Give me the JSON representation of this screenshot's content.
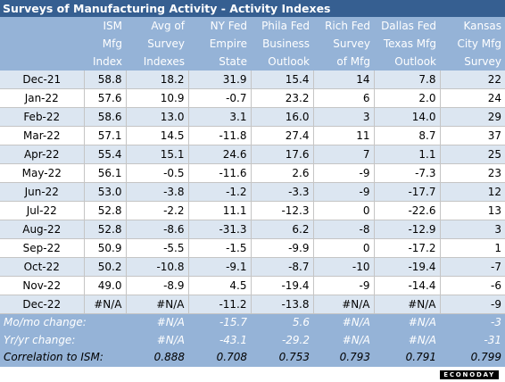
{
  "title": "Surveys of Manufacturing Activity - Activity Indexes",
  "brand": "ECONODAY",
  "chart_data": {
    "type": "table",
    "title": "Surveys of Manufacturing Activity - Activity Indexes",
    "columns": [
      {
        "key": "month",
        "header": [
          "",
          "",
          ""
        ]
      },
      {
        "key": "ism",
        "header": [
          "ISM",
          "Mfg",
          "Index"
        ]
      },
      {
        "key": "avg",
        "header": [
          "Avg of",
          "Survey",
          "Indexes"
        ]
      },
      {
        "key": "nyfed",
        "header": [
          "NY Fed",
          "Empire",
          "State"
        ]
      },
      {
        "key": "phila",
        "header": [
          "Phila Fed",
          "Business",
          "Outlook"
        ]
      },
      {
        "key": "rich",
        "header": [
          "Rich Fed",
          "Survey",
          "of Mfg"
        ]
      },
      {
        "key": "dallas",
        "header": [
          "Dallas Fed",
          "Texas Mfg",
          "Outlook"
        ]
      },
      {
        "key": "kc",
        "header": [
          "Kansas",
          "City Mfg",
          "Survey"
        ]
      }
    ],
    "rows": [
      [
        "Dec-21",
        "58.8",
        "18.2",
        "31.9",
        "15.4",
        "14",
        "7.8",
        "22"
      ],
      [
        "Jan-22",
        "57.6",
        "10.9",
        "-0.7",
        "23.2",
        "6",
        "2.0",
        "24"
      ],
      [
        "Feb-22",
        "58.6",
        "13.0",
        "3.1",
        "16.0",
        "3",
        "14.0",
        "29"
      ],
      [
        "Mar-22",
        "57.1",
        "14.5",
        "-11.8",
        "27.4",
        "11",
        "8.7",
        "37"
      ],
      [
        "Apr-22",
        "55.4",
        "15.1",
        "24.6",
        "17.6",
        "7",
        "1.1",
        "25"
      ],
      [
        "May-22",
        "56.1",
        "-0.5",
        "-11.6",
        "2.6",
        "-9",
        "-7.3",
        "23"
      ],
      [
        "Jun-22",
        "53.0",
        "-3.8",
        "-1.2",
        "-3.3",
        "-9",
        "-17.7",
        "12"
      ],
      [
        "Jul-22",
        "52.8",
        "-2.2",
        "11.1",
        "-12.3",
        "0",
        "-22.6",
        "13"
      ],
      [
        "Aug-22",
        "52.8",
        "-8.6",
        "-31.3",
        "6.2",
        "-8",
        "-12.9",
        "3"
      ],
      [
        "Sep-22",
        "50.9",
        "-5.5",
        "-1.5",
        "-9.9",
        "0",
        "-17.2",
        "1"
      ],
      [
        "Oct-22",
        "50.2",
        "-10.8",
        "-9.1",
        "-8.7",
        "-10",
        "-19.4",
        "-7"
      ],
      [
        "Nov-22",
        "49.0",
        "-8.9",
        "4.5",
        "-19.4",
        "-9",
        "-14.4",
        "-6"
      ],
      [
        "Dec-22",
        "#N/A",
        "#N/A",
        "-11.2",
        "-13.8",
        "#N/A",
        "#N/A",
        "-9"
      ]
    ],
    "summary": [
      {
        "label": "Mo/mo change:",
        "values": [
          "",
          "#N/A",
          "-15.7",
          "5.6",
          "#N/A",
          "#N/A",
          "-3"
        ]
      },
      {
        "label": "Yr/yr change:",
        "values": [
          "",
          "#N/A",
          "-43.1",
          "-29.2",
          "#N/A",
          "#N/A",
          "-31"
        ]
      },
      {
        "label": "Correlation to ISM:",
        "values": [
          "",
          "0.888",
          "0.708",
          "0.753",
          "0.793",
          "0.791",
          "0.799"
        ]
      }
    ]
  }
}
